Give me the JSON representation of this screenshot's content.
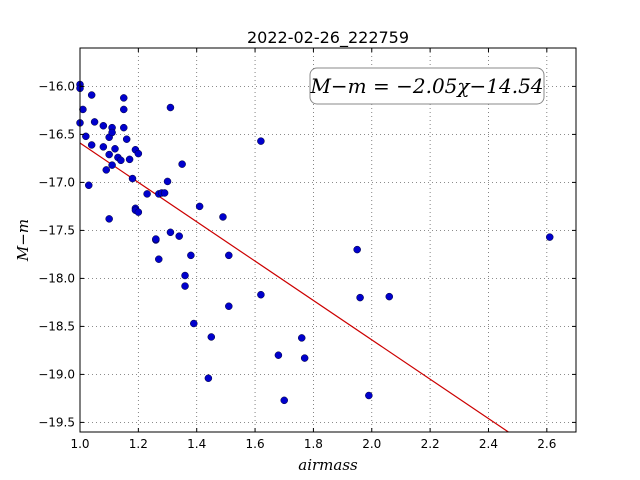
{
  "chart_data": {
    "type": "scatter",
    "title": "2022-02-26_222759",
    "xlabel": "airmass",
    "ylabel": "M−m",
    "xlim": [
      1.0,
      2.7
    ],
    "ylim": [
      -19.6,
      -15.6
    ],
    "y_inverted": true,
    "grid": true,
    "x_ticks": [
      1.0,
      1.2,
      1.4,
      1.6,
      1.8,
      2.0,
      2.2,
      2.4,
      2.6
    ],
    "x_tick_labels": [
      "1.0",
      "1.2",
      "1.4",
      "1.6",
      "1.8",
      "2.0",
      "2.2",
      "2.4",
      "2.6"
    ],
    "y_ticks": [
      -16.0,
      -16.5,
      -17.0,
      -17.5,
      -18.0,
      -18.5,
      -19.0,
      -19.5
    ],
    "y_tick_labels": [
      "−16.0",
      "−16.5",
      "−17.0",
      "−17.5",
      "−18.0",
      "−18.5",
      "−19.0",
      "−19.5"
    ],
    "annotation": "M−m = −2.05χ−14.54",
    "fit": {
      "slope": -2.05,
      "intercept": -14.54
    },
    "colors": {
      "points": "#0000cc",
      "fit_line": "#cc0000",
      "grid": "#666666"
    },
    "points": [
      {
        "x": 1.0,
        "y": -15.98
      },
      {
        "x": 1.0,
        "y": -16.02
      },
      {
        "x": 1.0,
        "y": -16.38
      },
      {
        "x": 1.01,
        "y": -16.24
      },
      {
        "x": 1.02,
        "y": -16.52
      },
      {
        "x": 1.03,
        "y": -17.03
      },
      {
        "x": 1.04,
        "y": -16.09
      },
      {
        "x": 1.04,
        "y": -16.61
      },
      {
        "x": 1.05,
        "y": -16.37
      },
      {
        "x": 1.08,
        "y": -16.41
      },
      {
        "x": 1.08,
        "y": -16.63
      },
      {
        "x": 1.09,
        "y": -16.87
      },
      {
        "x": 1.1,
        "y": -16.53
      },
      {
        "x": 1.1,
        "y": -16.71
      },
      {
        "x": 1.1,
        "y": -17.38
      },
      {
        "x": 1.11,
        "y": -16.82
      },
      {
        "x": 1.11,
        "y": -16.43
      },
      {
        "x": 1.11,
        "y": -16.48
      },
      {
        "x": 1.12,
        "y": -16.65
      },
      {
        "x": 1.13,
        "y": -16.74
      },
      {
        "x": 1.14,
        "y": -16.77
      },
      {
        "x": 1.15,
        "y": -16.12
      },
      {
        "x": 1.15,
        "y": -16.24
      },
      {
        "x": 1.15,
        "y": -16.43
      },
      {
        "x": 1.16,
        "y": -16.55
      },
      {
        "x": 1.17,
        "y": -16.76
      },
      {
        "x": 1.18,
        "y": -16.96
      },
      {
        "x": 1.19,
        "y": -16.66
      },
      {
        "x": 1.19,
        "y": -17.27
      },
      {
        "x": 1.19,
        "y": -17.29
      },
      {
        "x": 1.2,
        "y": -17.31
      },
      {
        "x": 1.2,
        "y": -16.7
      },
      {
        "x": 1.23,
        "y": -17.12
      },
      {
        "x": 1.26,
        "y": -17.6
      },
      {
        "x": 1.26,
        "y": -17.59
      },
      {
        "x": 1.27,
        "y": -17.12
      },
      {
        "x": 1.27,
        "y": -17.8
      },
      {
        "x": 1.28,
        "y": -17.11
      },
      {
        "x": 1.29,
        "y": -17.11
      },
      {
        "x": 1.3,
        "y": -16.99
      },
      {
        "x": 1.31,
        "y": -16.22
      },
      {
        "x": 1.31,
        "y": -17.52
      },
      {
        "x": 1.34,
        "y": -17.56
      },
      {
        "x": 1.35,
        "y": -16.81
      },
      {
        "x": 1.36,
        "y": -17.97
      },
      {
        "x": 1.36,
        "y": -18.08
      },
      {
        "x": 1.38,
        "y": -17.76
      },
      {
        "x": 1.39,
        "y": -18.47
      },
      {
        "x": 1.41,
        "y": -17.25
      },
      {
        "x": 1.44,
        "y": -19.04
      },
      {
        "x": 1.45,
        "y": -18.61
      },
      {
        "x": 1.49,
        "y": -17.36
      },
      {
        "x": 1.51,
        "y": -18.29
      },
      {
        "x": 1.51,
        "y": -17.76
      },
      {
        "x": 1.62,
        "y": -16.57
      },
      {
        "x": 1.62,
        "y": -18.17
      },
      {
        "x": 1.68,
        "y": -18.8
      },
      {
        "x": 1.7,
        "y": -19.27
      },
      {
        "x": 1.76,
        "y": -18.62
      },
      {
        "x": 1.77,
        "y": -18.83
      },
      {
        "x": 1.95,
        "y": -17.7
      },
      {
        "x": 1.96,
        "y": -18.2
      },
      {
        "x": 1.99,
        "y": -19.22
      },
      {
        "x": 2.06,
        "y": -18.19
      },
      {
        "x": 2.61,
        "y": -17.57
      }
    ]
  }
}
